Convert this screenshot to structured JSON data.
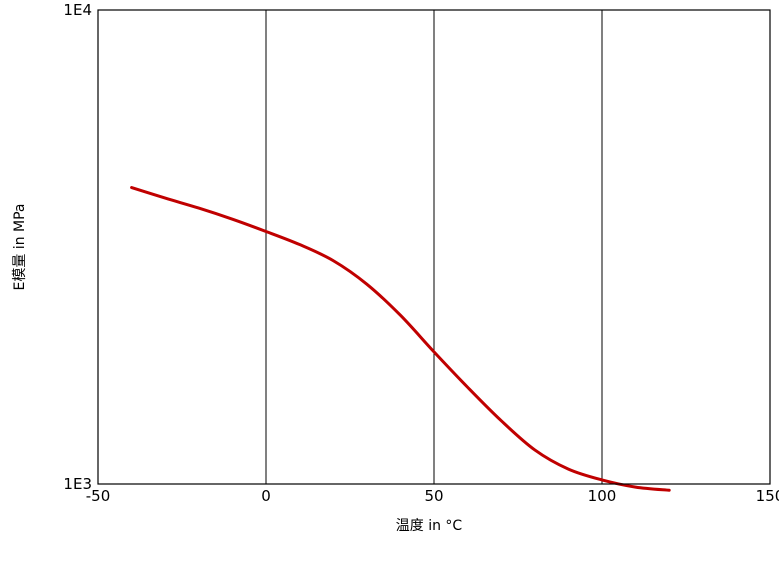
{
  "chart_data": {
    "type": "line",
    "xlabel": "温度 in °C",
    "ylabel": "E模量 in MPa",
    "xlim": [
      -50,
      150
    ],
    "ylim": [
      1000,
      10000
    ],
    "y_scale": "log",
    "x_ticks": [
      -50,
      0,
      50,
      100,
      150
    ],
    "x_tick_labels": [
      "-50",
      "0",
      "50",
      "100",
      "150"
    ],
    "y_ticks": [
      1000,
      10000
    ],
    "y_tick_labels": [
      "1E3",
      "1E4"
    ],
    "grid": "vertical",
    "series": [
      {
        "color": "#c00000",
        "x": [
          -40,
          -30,
          -20,
          -10,
          0,
          10,
          20,
          30,
          40,
          50,
          60,
          70,
          80,
          90,
          100,
          110,
          120
        ],
        "y": [
          4220,
          4010,
          3820,
          3620,
          3410,
          3200,
          2960,
          2640,
          2270,
          1900,
          1600,
          1360,
          1180,
          1075,
          1020,
          985,
          970
        ]
      }
    ]
  }
}
